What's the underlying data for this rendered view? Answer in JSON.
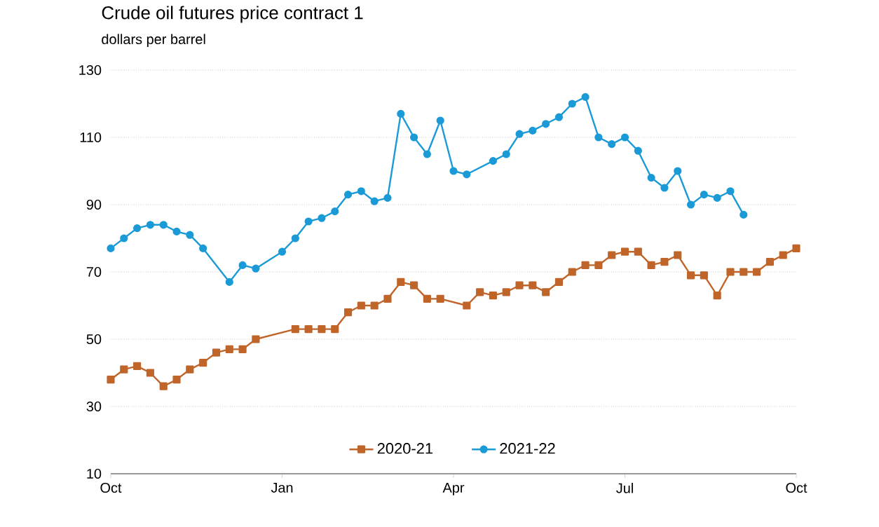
{
  "chart_data": {
    "type": "line",
    "title": "Crude oil futures price contract 1",
    "ylabel": "dollars per barrel",
    "categories": [
      "Oct",
      null,
      null,
      null,
      null,
      null,
      null,
      null,
      null,
      null,
      null,
      null,
      null,
      "Jan",
      null,
      null,
      null,
      null,
      null,
      null,
      null,
      null,
      null,
      null,
      null,
      null,
      "Apr",
      null,
      null,
      null,
      null,
      null,
      null,
      null,
      null,
      null,
      null,
      null,
      null,
      "Jul",
      null,
      null,
      null,
      null,
      null,
      null,
      null,
      null,
      null,
      null,
      null,
      null,
      "Oct"
    ],
    "ylim": [
      10,
      130
    ],
    "yticks": [
      10,
      30,
      50,
      70,
      90,
      110,
      130
    ],
    "grid": "y",
    "legend": "bottom",
    "line_style": "solid",
    "series": [
      {
        "name": "2020-21",
        "color": "#c0652a",
        "marker": "square",
        "values": [
          38,
          41,
          42,
          40,
          36,
          38,
          41,
          43,
          46,
          47,
          47,
          50,
          null,
          null,
          53,
          53,
          53,
          53,
          58,
          60,
          60,
          62,
          67,
          66,
          62,
          62,
          null,
          60,
          64,
          63,
          64,
          66,
          66,
          64,
          67,
          70,
          72,
          72,
          75,
          76,
          76,
          72,
          73,
          75,
          69,
          69,
          63,
          70,
          70,
          70,
          73,
          75,
          77
        ]
      },
      {
        "name": "2021-22",
        "color": "#1a9ad6",
        "marker": "circle",
        "values": [
          77,
          80,
          83,
          84,
          84,
          82,
          81,
          77,
          null,
          67,
          72,
          71,
          null,
          76,
          80,
          85,
          86,
          88,
          93,
          94,
          91,
          92,
          117,
          110,
          105,
          115,
          100,
          99,
          null,
          103,
          105,
          111,
          112,
          114,
          116,
          120,
          122,
          110,
          108,
          110,
          106,
          98,
          95,
          100,
          90,
          93,
          92,
          94,
          87,
          null,
          null,
          null,
          null
        ]
      }
    ]
  }
}
